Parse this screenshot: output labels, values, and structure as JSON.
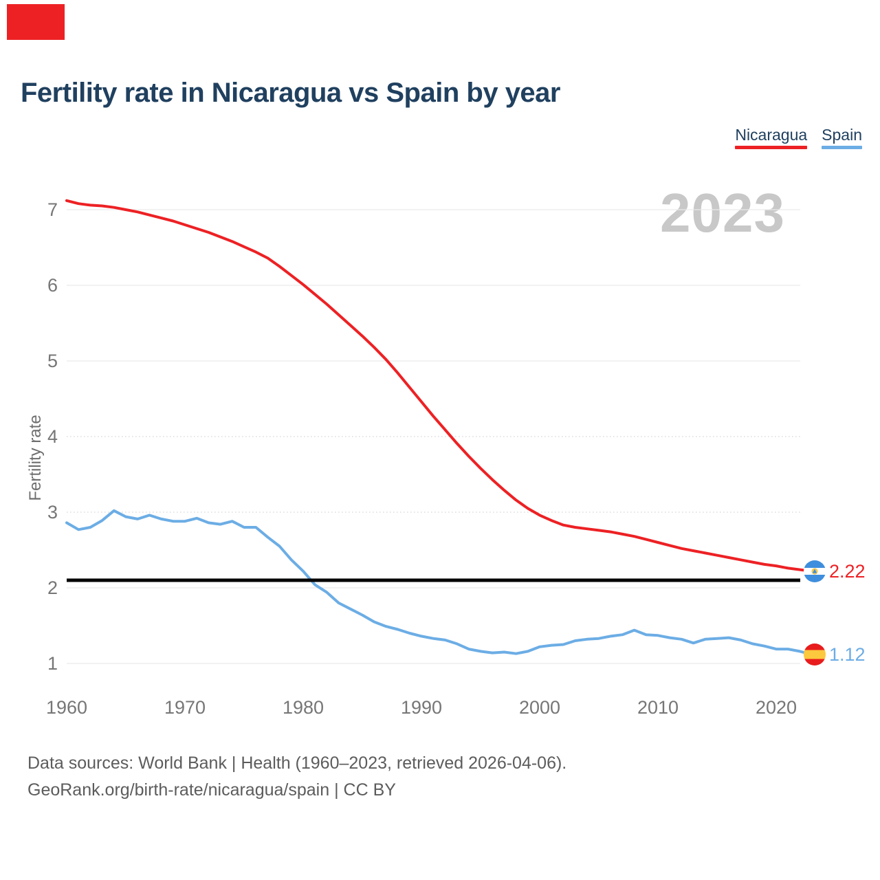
{
  "page": {
    "title": "Fertility rate in Nicaragua vs Spain by year"
  },
  "legend": {
    "items": [
      {
        "label": "Nicaragua",
        "color": "#ed2124"
      },
      {
        "label": "Spain",
        "color": "#6cade5"
      }
    ]
  },
  "watermark": "2023",
  "footer": {
    "line1": "Data sources: World Bank | Health (1960–2023, retrieved 2026-04-06).",
    "line2": "GeoRank.org/birth-rate/nicaragua/spain | CC BY"
  },
  "colors": {
    "nicaragua_red": "#ed2124",
    "spain_blue": "#6cade5",
    "title_navy": "#20405f",
    "replacement_line_black": "#000000",
    "gridline_gray": "#e9e9e9",
    "tick_gray": "#767676",
    "watermark_gray": "#c8c8c8"
  },
  "chart_data": {
    "type": "line",
    "title": "Fertility rate in Nicaragua vs Spain by year",
    "xlabel": "",
    "ylabel": "Fertility rate",
    "ylim": [
      0.8,
      7.3
    ],
    "grid": "horizontal",
    "legend_position": "top-right",
    "x_ticks": [
      1960,
      1970,
      1980,
      1990,
      2000,
      2010,
      2020
    ],
    "y_ticks": [
      1,
      2,
      3,
      4,
      5,
      6,
      7
    ],
    "years": [
      1960,
      1961,
      1962,
      1963,
      1964,
      1965,
      1966,
      1967,
      1968,
      1969,
      1970,
      1971,
      1972,
      1973,
      1974,
      1975,
      1976,
      1977,
      1978,
      1979,
      1980,
      1981,
      1982,
      1983,
      1984,
      1985,
      1986,
      1987,
      1988,
      1989,
      1990,
      1991,
      1992,
      1993,
      1994,
      1995,
      1996,
      1997,
      1998,
      1999,
      2000,
      2001,
      2002,
      2003,
      2004,
      2005,
      2006,
      2007,
      2008,
      2009,
      2010,
      2011,
      2012,
      2013,
      2014,
      2015,
      2016,
      2017,
      2018,
      2019,
      2020,
      2021,
      2022,
      2023
    ],
    "series": [
      {
        "name": "Nicaragua",
        "color": "#ed2124",
        "values": [
          7.12,
          7.08,
          7.06,
          7.05,
          7.03,
          7.0,
          6.97,
          6.93,
          6.89,
          6.85,
          6.8,
          6.75,
          6.7,
          6.64,
          6.58,
          6.51,
          6.44,
          6.36,
          6.25,
          6.13,
          6.01,
          5.88,
          5.75,
          5.61,
          5.47,
          5.33,
          5.18,
          5.02,
          4.84,
          4.65,
          4.46,
          4.27,
          4.09,
          3.91,
          3.74,
          3.58,
          3.43,
          3.29,
          3.16,
          3.05,
          2.96,
          2.89,
          2.83,
          2.8,
          2.78,
          2.76,
          2.74,
          2.71,
          2.68,
          2.64,
          2.6,
          2.56,
          2.52,
          2.49,
          2.46,
          2.43,
          2.4,
          2.37,
          2.34,
          2.31,
          2.29,
          2.26,
          2.24,
          2.22
        ]
      },
      {
        "name": "Spain",
        "color": "#6cade5",
        "values": [
          2.86,
          2.77,
          2.8,
          2.89,
          3.02,
          2.94,
          2.91,
          2.96,
          2.91,
          2.88,
          2.88,
          2.92,
          2.86,
          2.84,
          2.88,
          2.8,
          2.8,
          2.67,
          2.55,
          2.37,
          2.22,
          2.04,
          1.94,
          1.8,
          1.72,
          1.64,
          1.55,
          1.49,
          1.45,
          1.4,
          1.36,
          1.33,
          1.31,
          1.26,
          1.19,
          1.16,
          1.14,
          1.15,
          1.13,
          1.16,
          1.22,
          1.24,
          1.25,
          1.3,
          1.32,
          1.33,
          1.36,
          1.38,
          1.44,
          1.38,
          1.37,
          1.34,
          1.32,
          1.27,
          1.32,
          1.33,
          1.34,
          1.31,
          1.26,
          1.23,
          1.19,
          1.19,
          1.16,
          1.12
        ]
      }
    ],
    "reference_line": {
      "value": 2.1,
      "color": "#000000"
    },
    "end_labels": {
      "nicaragua": "2.22",
      "spain": "1.12"
    }
  }
}
